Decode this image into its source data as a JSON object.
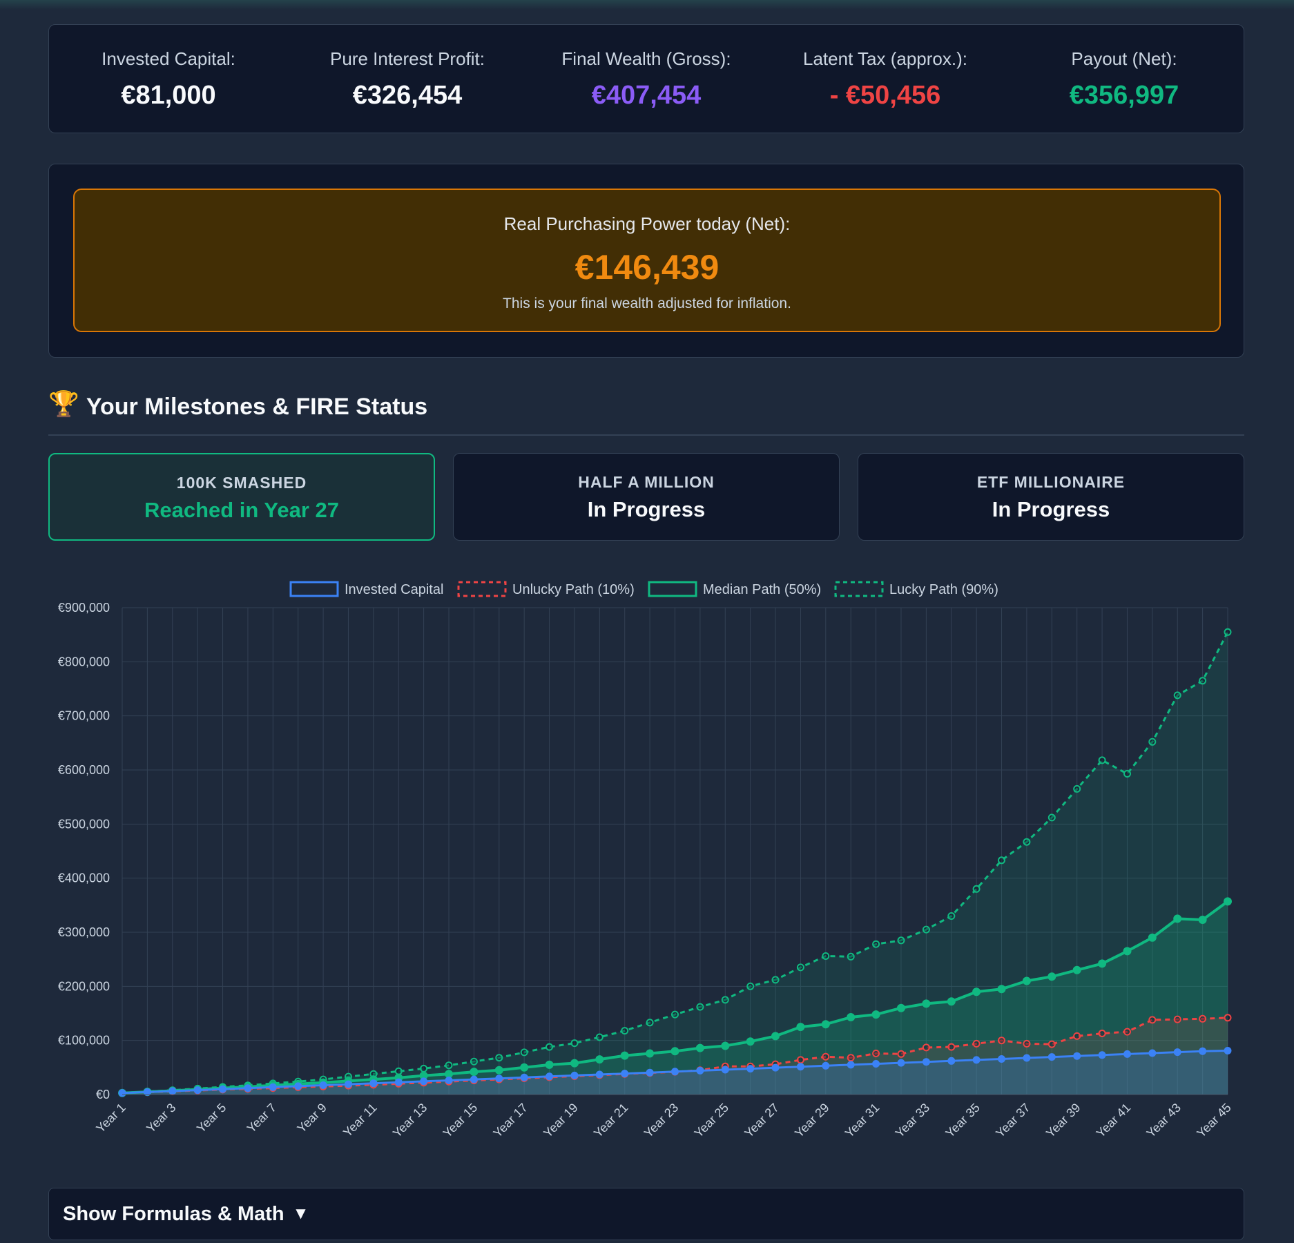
{
  "summary": {
    "invested": {
      "label": "Invested Capital:",
      "value": "€81,000"
    },
    "interest": {
      "label": "Pure Interest Profit:",
      "value": "€326,454"
    },
    "gross": {
      "label": "Final Wealth (Gross):",
      "value": "€407,454"
    },
    "tax": {
      "label": "Latent Tax (approx.):",
      "value": "- €50,456"
    },
    "net": {
      "label": "Payout (Net):",
      "value": "€356,997"
    }
  },
  "real_power": {
    "label": "Real Purchasing Power today (Net):",
    "value": "€146,439",
    "note": "This is your final wealth adjusted for inflation."
  },
  "milestones": {
    "icon": "trophy-icon",
    "title": "Your Milestones & FIRE Status",
    "cards": [
      {
        "name": "100K SMASHED",
        "status": "Reached in Year 27"
      },
      {
        "name": "HALF A MILLION",
        "status": "In Progress"
      },
      {
        "name": "ETF MILLIONAIRE",
        "status": "In Progress"
      }
    ]
  },
  "formulas": {
    "label": "Show Formulas & Math",
    "icon": "caret-down-icon"
  },
  "colors": {
    "invested": "#3b82f6",
    "unlucky": "#ef4444",
    "median": "#10b981",
    "lucky": "#10b981",
    "accent_orange": "#f08a10",
    "accent_purple": "#8b5cf6"
  },
  "chart_data": {
    "type": "line",
    "ylim": [
      0,
      900000
    ],
    "y_ticks": [
      "€0",
      "€100,000",
      "€200,000",
      "€300,000",
      "€400,000",
      "€500,000",
      "€600,000",
      "€700,000",
      "€800,000",
      "€900,000"
    ],
    "x_tick_labels": [
      "Year 1",
      "Year 3",
      "Year 5",
      "Year 7",
      "Year 9",
      "Year 11",
      "Year 13",
      "Year 15",
      "Year 17",
      "Year 19",
      "Year 21",
      "Year 23",
      "Year 25",
      "Year 27",
      "Year 29",
      "Year 31",
      "Year 33",
      "Year 35",
      "Year 37",
      "Year 39",
      "Year 41",
      "Year 43",
      "Year 45"
    ],
    "grid": true,
    "legend_position": "top",
    "x": [
      "Year 1",
      "Year 2",
      "Year 3",
      "Year 4",
      "Year 5",
      "Year 6",
      "Year 7",
      "Year 8",
      "Year 9",
      "Year 10",
      "Year 11",
      "Year 12",
      "Year 13",
      "Year 14",
      "Year 15",
      "Year 16",
      "Year 17",
      "Year 18",
      "Year 19",
      "Year 20",
      "Year 21",
      "Year 22",
      "Year 23",
      "Year 24",
      "Year 25",
      "Year 26",
      "Year 27",
      "Year 28",
      "Year 29",
      "Year 30",
      "Year 31",
      "Year 32",
      "Year 33",
      "Year 34",
      "Year 35",
      "Year 36",
      "Year 37",
      "Year 38",
      "Year 39",
      "Year 40",
      "Year 41",
      "Year 42",
      "Year 43",
      "Year 44",
      "Year 45"
    ],
    "series": [
      {
        "name": "Invested Capital",
        "style": "solid",
        "values": [
          2800,
          4600,
          6400,
          8200,
          10000,
          11800,
          13600,
          15400,
          17200,
          19000,
          20800,
          22600,
          24400,
          26200,
          28000,
          29800,
          31600,
          33400,
          35200,
          37000,
          38800,
          40600,
          42400,
          44200,
          46000,
          47800,
          49600,
          51400,
          53200,
          55000,
          56800,
          58600,
          60400,
          62200,
          64000,
          65800,
          67600,
          69400,
          71200,
          73000,
          74800,
          76600,
          78400,
          80200,
          81000
        ]
      },
      {
        "name": "Unlucky Path (10%)",
        "style": "dashed",
        "values": [
          2500,
          4200,
          5800,
          7500,
          9200,
          10500,
          12000,
          13500,
          15000,
          16500,
          18000,
          20000,
          22000,
          24000,
          26000,
          28000,
          30000,
          32000,
          34000,
          36000,
          38000,
          40000,
          42000,
          45000,
          52000,
          52000,
          56000,
          64000,
          70000,
          68000,
          76000,
          75000,
          87000,
          88000,
          94000,
          100000,
          94000,
          93000,
          108000,
          113000,
          116000,
          138000,
          139000,
          140000,
          142000
        ]
      },
      {
        "name": "Median Path (50%)",
        "style": "solid",
        "values": [
          2800,
          5000,
          7000,
          9500,
          12000,
          14000,
          17000,
          19500,
          22000,
          25000,
          28000,
          31000,
          35000,
          38000,
          42000,
          45000,
          50000,
          55000,
          58000,
          65000,
          72000,
          76000,
          80000,
          86000,
          90000,
          98000,
          108000,
          125000,
          130000,
          143000,
          148000,
          160000,
          168000,
          172000,
          190000,
          195000,
          210000,
          218000,
          230000,
          242000,
          265000,
          290000,
          325000,
          323000,
          357000
        ]
      },
      {
        "name": "Lucky Path (90%)",
        "style": "dashed",
        "values": [
          3000,
          5500,
          8000,
          11000,
          14000,
          17000,
          20500,
          24000,
          28000,
          33000,
          38000,
          43000,
          48000,
          54000,
          61000,
          68000,
          78000,
          88000,
          95000,
          106000,
          118000,
          133000,
          148000,
          162000,
          175000,
          200000,
          212000,
          235000,
          256000,
          255000,
          278000,
          285000,
          305000,
          330000,
          380000,
          433000,
          467000,
          512000,
          565000,
          618000,
          593000,
          652000,
          738000,
          765000,
          855000
        ]
      }
    ]
  }
}
